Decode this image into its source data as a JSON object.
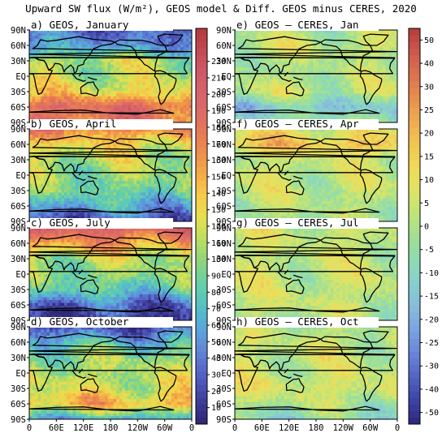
{
  "title": "Upward SW flux (W/m²), GEOS model & Diff. GEOS minus CERES, 2020",
  "lat_tick_labels": [
    "90N",
    "60N",
    "30N",
    "EQ",
    "30S",
    "60S",
    "90S"
  ],
  "lon_tick_labels": [
    "0",
    "60E",
    "120E",
    "180",
    "120W",
    "60W",
    "0"
  ],
  "colors": {
    "frame": "#000000",
    "coast": "#000000"
  },
  "chart_data": [
    {
      "type": "heatmap",
      "panel": "a",
      "title": "a) GEOS, January",
      "month": "January",
      "variable": "GEOS upward SW flux",
      "unit": "W/m²",
      "colorbar_range": [
        0,
        240
      ],
      "colorbar_ticks": [
        10,
        20,
        30,
        40,
        50,
        60,
        70,
        80,
        90,
        100,
        110,
        120,
        130,
        140,
        150,
        160,
        170,
        180,
        190,
        200,
        210,
        220
      ],
      "zonal_mean_approx": [
        {
          "lat": "90N",
          "value": 30
        },
        {
          "lat": "60N",
          "value": 50
        },
        {
          "lat": "30N",
          "value": 110
        },
        {
          "lat": "EQ",
          "value": 110
        },
        {
          "lat": "30S",
          "value": 130
        },
        {
          "lat": "60S",
          "value": 190
        },
        {
          "lat": "90S",
          "value": 180
        }
      ]
    },
    {
      "type": "heatmap",
      "panel": "b",
      "title": "b) GEOS, April",
      "month": "April",
      "variable": "GEOS upward SW flux",
      "unit": "W/m²",
      "colorbar_range": [
        0,
        240
      ],
      "zonal_mean_approx": [
        {
          "lat": "90N",
          "value": 170
        },
        {
          "lat": "60N",
          "value": 130
        },
        {
          "lat": "30N",
          "value": 110
        },
        {
          "lat": "EQ",
          "value": 100
        },
        {
          "lat": "30S",
          "value": 90
        },
        {
          "lat": "60S",
          "value": 60
        },
        {
          "lat": "90S",
          "value": 20
        }
      ]
    },
    {
      "type": "heatmap",
      "panel": "c",
      "title": "c) GEOS, July",
      "month": "July",
      "variable": "GEOS upward SW flux",
      "unit": "W/m²",
      "colorbar_range": [
        0,
        240
      ],
      "zonal_mean_approx": [
        {
          "lat": "90N",
          "value": 200
        },
        {
          "lat": "60N",
          "value": 160
        },
        {
          "lat": "30N",
          "value": 110
        },
        {
          "lat": "EQ",
          "value": 100
        },
        {
          "lat": "30S",
          "value": 80
        },
        {
          "lat": "60S",
          "value": 30
        },
        {
          "lat": "90S",
          "value": 10
        }
      ]
    },
    {
      "type": "heatmap",
      "panel": "d",
      "title": "d) GEOS, October",
      "month": "October",
      "variable": "GEOS upward SW flux",
      "unit": "W/m²",
      "colorbar_range": [
        0,
        240
      ],
      "zonal_mean_approx": [
        {
          "lat": "90N",
          "value": 20
        },
        {
          "lat": "60N",
          "value": 70
        },
        {
          "lat": "30N",
          "value": 100
        },
        {
          "lat": "EQ",
          "value": 110
        },
        {
          "lat": "30S",
          "value": 120
        },
        {
          "lat": "60S",
          "value": 150
        },
        {
          "lat": "90S",
          "value": 60
        }
      ]
    },
    {
      "type": "heatmap",
      "panel": "e",
      "title": "e) GEOS – CERES, Jan",
      "month": "Jan",
      "variable": "GEOS minus CERES upward SW flux",
      "unit": "W/m²",
      "colorbar_range": [
        -60,
        60
      ],
      "colorbar_ticks": [
        50,
        40,
        30,
        25,
        20,
        15,
        10,
        5,
        0,
        -5,
        -10,
        -15,
        -20,
        -25,
        -30,
        -40,
        -50
      ],
      "zonal_mean_approx": [
        {
          "lat": "90N",
          "value": 0
        },
        {
          "lat": "60N",
          "value": 5
        },
        {
          "lat": "30N",
          "value": 0
        },
        {
          "lat": "EQ",
          "value": 0
        },
        {
          "lat": "30S",
          "value": 5
        },
        {
          "lat": "60S",
          "value": -20
        },
        {
          "lat": "90S",
          "value": -5
        }
      ]
    },
    {
      "type": "heatmap",
      "panel": "f",
      "title": "f) GEOS – CERES, Apr",
      "month": "Apr",
      "variable": "GEOS minus CERES upward SW flux",
      "unit": "W/m²",
      "colorbar_range": [
        -60,
        60
      ],
      "zonal_mean_approx": [
        {
          "lat": "90N",
          "value": 10
        },
        {
          "lat": "60N",
          "value": 25
        },
        {
          "lat": "30N",
          "value": 5
        },
        {
          "lat": "EQ",
          "value": 5
        },
        {
          "lat": "30S",
          "value": 5
        },
        {
          "lat": "60S",
          "value": 0
        },
        {
          "lat": "90S",
          "value": 0
        }
      ]
    },
    {
      "type": "heatmap",
      "panel": "g",
      "title": "g) GEOS – CERES, Jul",
      "month": "Jul",
      "variable": "GEOS minus CERES upward SW flux",
      "unit": "W/m²",
      "colorbar_range": [
        -60,
        60
      ],
      "zonal_mean_approx": [
        {
          "lat": "90N",
          "value": 5
        },
        {
          "lat": "60N",
          "value": 5
        },
        {
          "lat": "30N",
          "value": 5
        },
        {
          "lat": "EQ",
          "value": 5
        },
        {
          "lat": "30S",
          "value": 5
        },
        {
          "lat": "60S",
          "value": 5
        },
        {
          "lat": "90S",
          "value": 0
        }
      ]
    },
    {
      "type": "heatmap",
      "panel": "h",
      "title": "h) GEOS – CERES, Oct",
      "month": "Oct",
      "variable": "GEOS minus CERES upward SW flux",
      "unit": "W/m²",
      "colorbar_range": [
        -60,
        60
      ],
      "zonal_mean_approx": [
        {
          "lat": "90N",
          "value": 0
        },
        {
          "lat": "60N",
          "value": 5
        },
        {
          "lat": "30N",
          "value": 5
        },
        {
          "lat": "EQ",
          "value": 5
        },
        {
          "lat": "30S",
          "value": 10
        },
        {
          "lat": "60S",
          "value": 0
        },
        {
          "lat": "90S",
          "value": -10
        }
      ]
    }
  ]
}
